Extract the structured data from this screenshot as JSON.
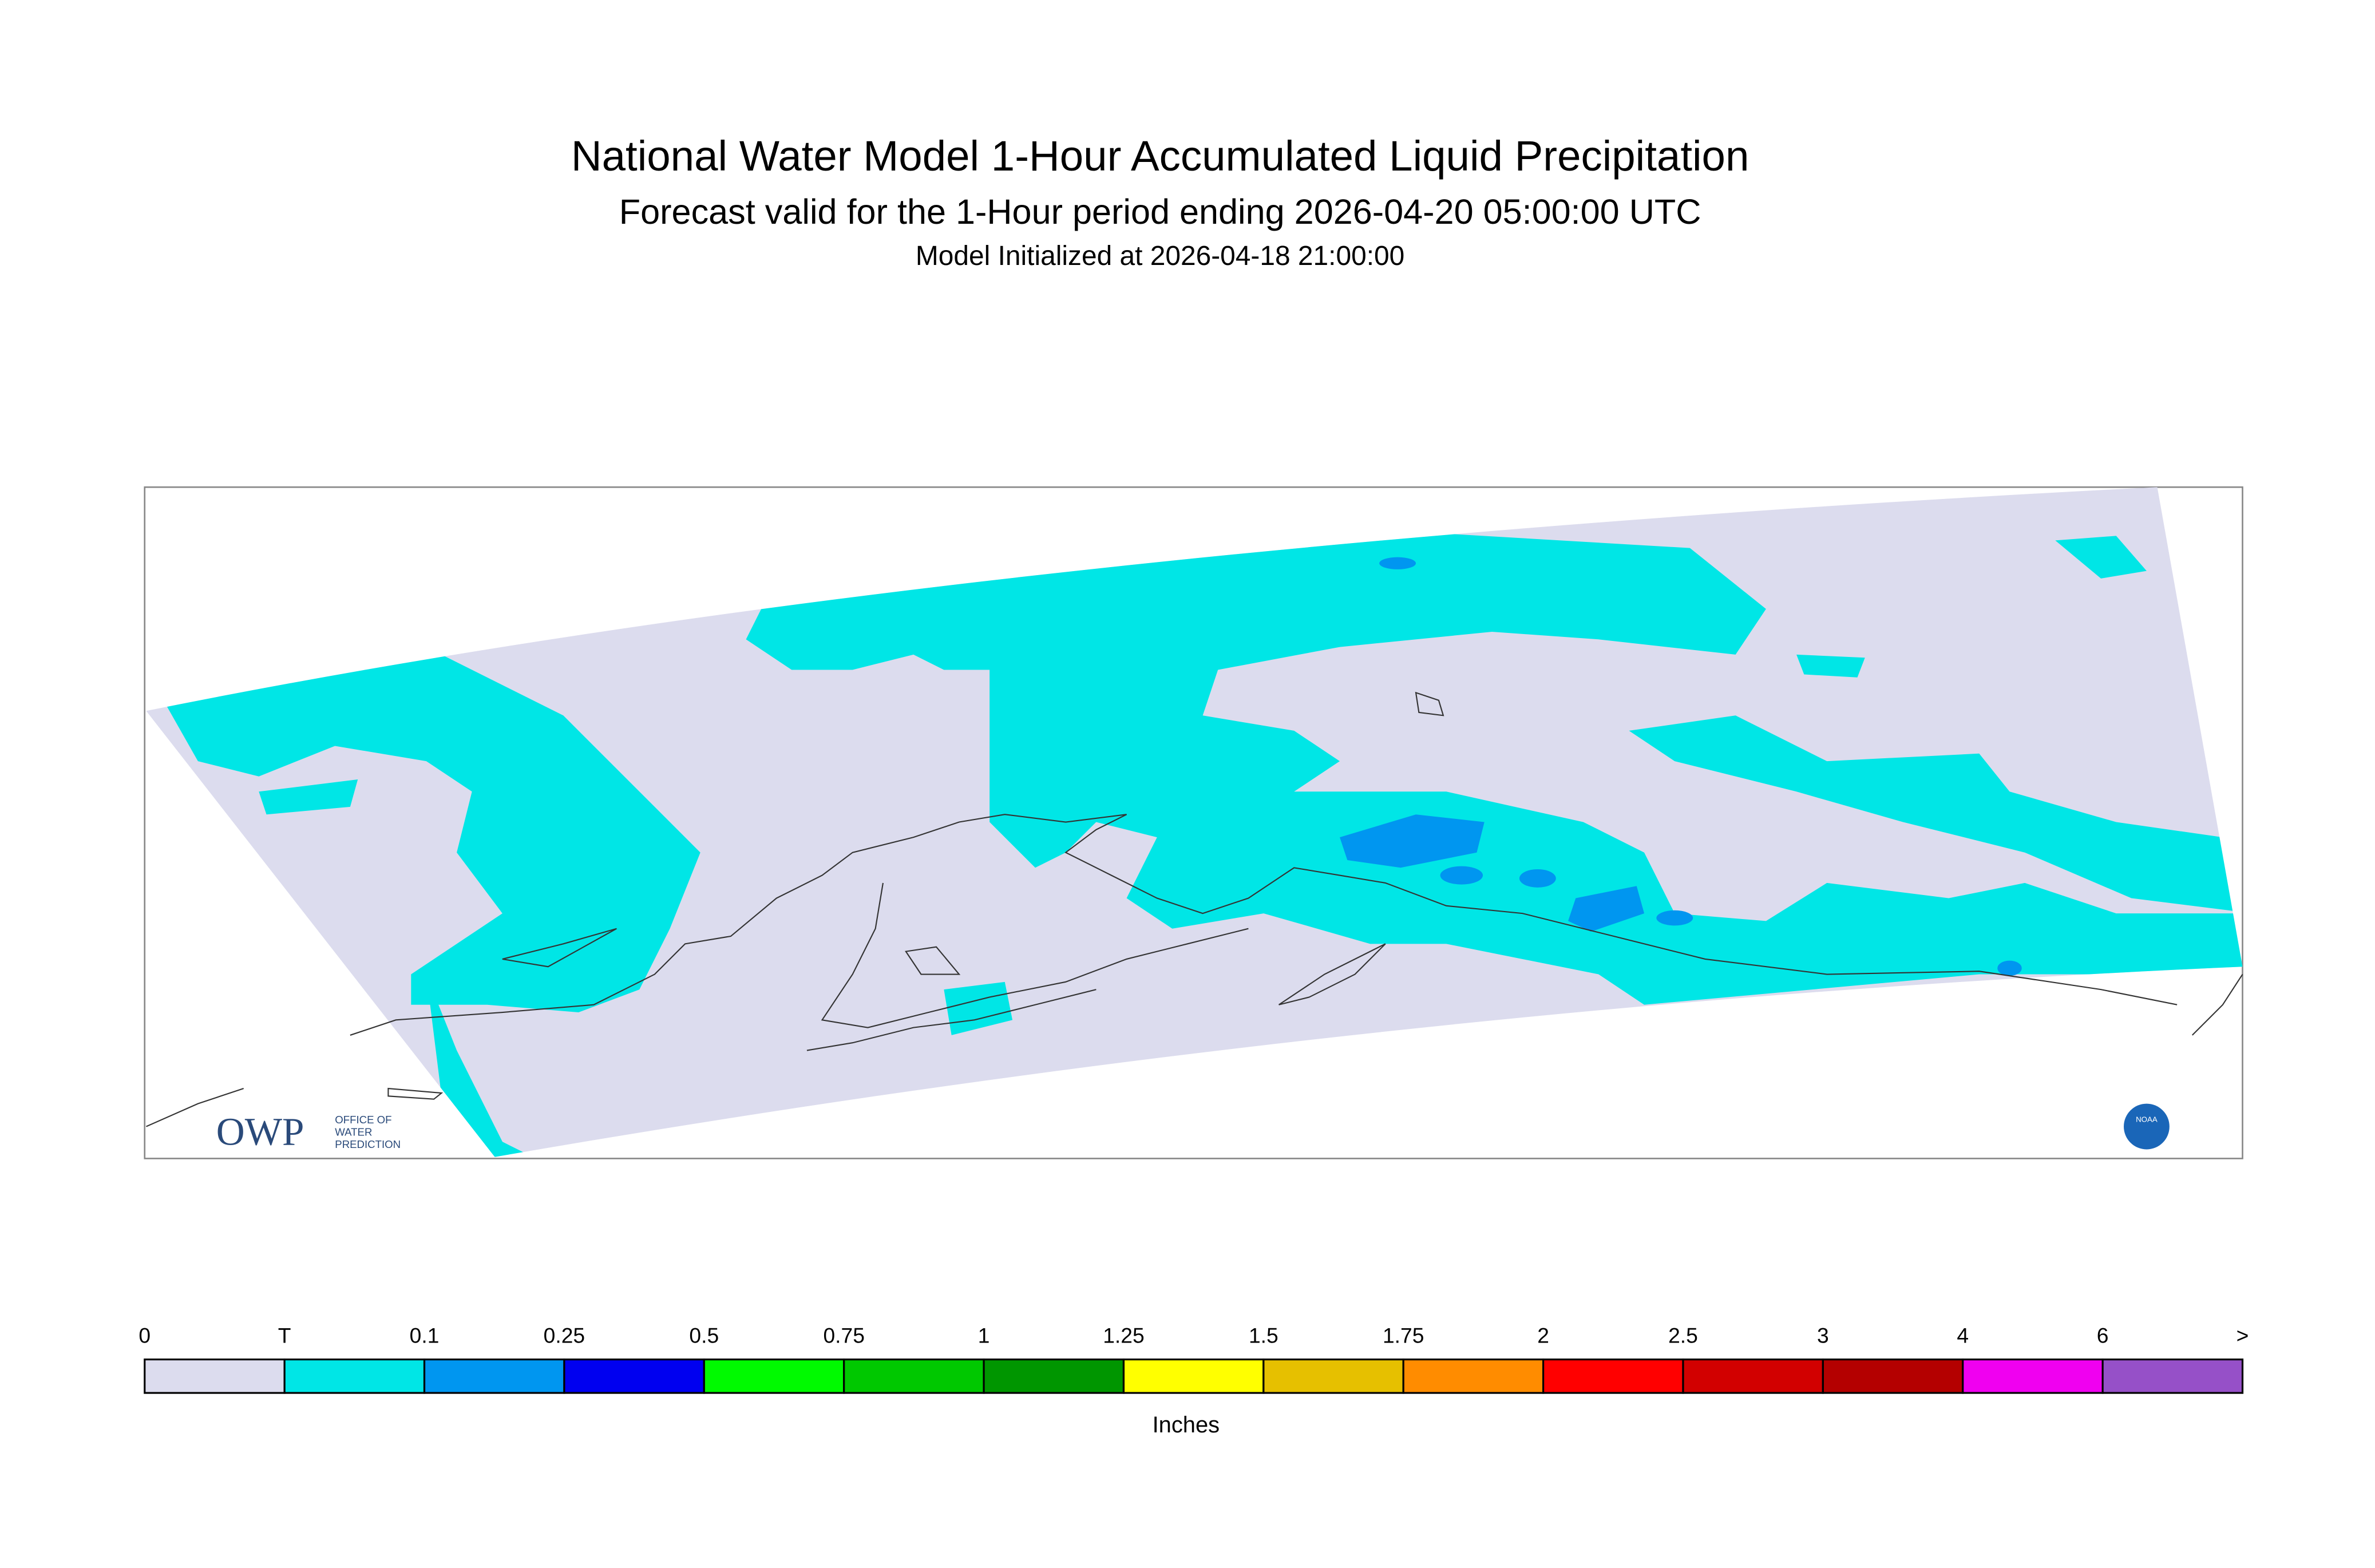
{
  "header": {
    "title": "National Water Model 1-Hour Accumulated Liquid Precipitation",
    "subtitle": "Forecast valid for the 1-Hour period ending 2026-04-20 05:00:00 UTC",
    "initialized": "Model Initialized at 2026-04-18 21:00:00"
  },
  "logos": {
    "owp": "OWP",
    "owp_line1": "OFFICE OF",
    "owp_line2": "WATER",
    "owp_line3": "PREDICTION",
    "noaa": "NOAA"
  },
  "legend": {
    "labels": [
      "0",
      "T",
      "0.1",
      "0.25",
      "0.5",
      "0.75",
      "1",
      "1.25",
      "1.5",
      "1.75",
      "2",
      "2.5",
      "3",
      "4",
      "6",
      ">"
    ],
    "colors": [
      "#dcdcee",
      "#00e6e6",
      "#0096f0",
      "#0000f0",
      "#00fa00",
      "#00c800",
      "#009600",
      "#ffff00",
      "#e6c000",
      "#ff8c00",
      "#ff0000",
      "#d20000",
      "#b40000",
      "#f000f0",
      "#9650c8"
    ],
    "units": "Inches"
  }
}
